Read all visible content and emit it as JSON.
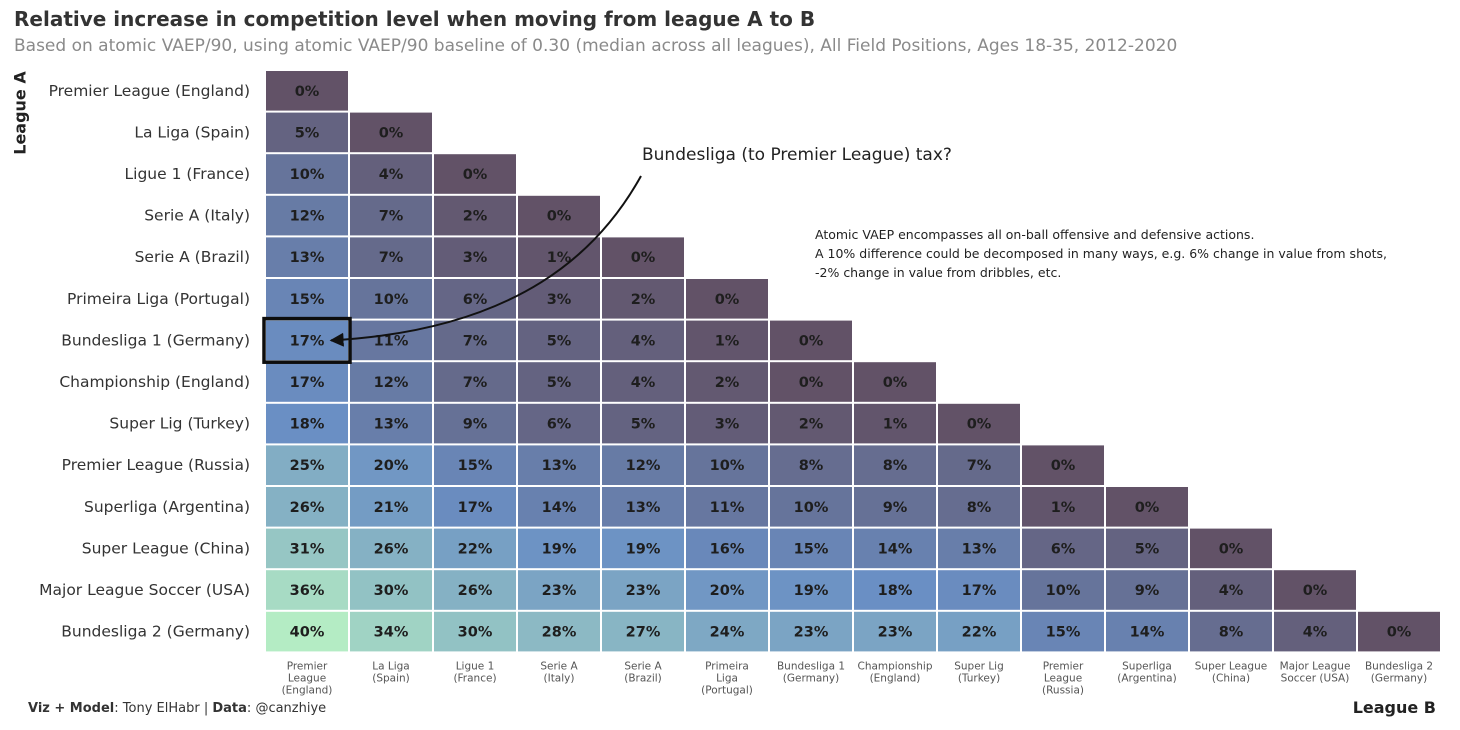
{
  "header": {
    "title": "Relative increase in competition level when moving from league A to B",
    "subtitle": "Based on atomic VAEP/90, using atomic VAEP/90 baseline of 0.30 (median across all leagues), All Field Positions, Ages 18-35, 2012-2020"
  },
  "annotation": {
    "callout": "Bundesliga (to Premier League) tax?",
    "note_lines": [
      "Atomic VAEP encompasses all on-ball offensive and defensive actions.",
      "A 10% difference could be decomposed in many ways, e.g. 6% change in value from shots,",
      "-2% change in value from dribbles, etc."
    ]
  },
  "caption": {
    "viz_label": "Viz + Model",
    "viz_value": "Tony ElHabr",
    "data_label": "Data",
    "data_value": "@canzhiye",
    "separator": "|"
  },
  "chart_data": {
    "type": "heatmap",
    "title": "Relative increase in competition level when moving from league A to B",
    "subtitle": "Based on atomic VAEP/90, using atomic VAEP/90 baseline of 0.30 (median across all leagues), All Field Positions, Ages 18-35, 2012-2020",
    "ylabel": "League A",
    "xlabel": "League B",
    "unit": "%",
    "color_scale": {
      "low": "#625267",
      "mid": "#6a8fc4",
      "high": "#b4ecc4"
    },
    "highlight_cell": {
      "row": "Bundesliga 1 (Germany)",
      "col": "Premier League (England)"
    },
    "rows": [
      "Premier League (England)",
      "La Liga (Spain)",
      "Ligue 1 (France)",
      "Serie A (Italy)",
      "Serie A (Brazil)",
      "Primeira Liga (Portugal)",
      "Bundesliga 1 (Germany)",
      "Championship (England)",
      "Super Lig (Turkey)",
      "Premier League (Russia)",
      "Superliga (Argentina)",
      "Super League (China)",
      "Major League Soccer (USA)",
      "Bundesliga 2 (Germany)"
    ],
    "columns": [
      [
        "Premier",
        "League",
        "(England)"
      ],
      [
        "La Liga",
        "(Spain)"
      ],
      [
        "Ligue 1",
        "(France)"
      ],
      [
        "Serie A",
        "(Italy)"
      ],
      [
        "Serie A",
        "(Brazil)"
      ],
      [
        "Primeira",
        "Liga",
        "(Portugal)"
      ],
      [
        "Bundesliga 1",
        "(Germany)"
      ],
      [
        "Championship",
        "(England)"
      ],
      [
        "Super Lig",
        "(Turkey)"
      ],
      [
        "Premier",
        "League",
        "(Russia)"
      ],
      [
        "Superliga",
        "(Argentina)"
      ],
      [
        "Super League",
        "(China)"
      ],
      [
        "Major League",
        "Soccer (USA)"
      ],
      [
        "Bundesliga 2",
        "(Germany)"
      ]
    ],
    "values": [
      [
        0
      ],
      [
        5,
        0
      ],
      [
        10,
        4,
        0
      ],
      [
        12,
        7,
        2,
        0
      ],
      [
        13,
        7,
        3,
        1,
        0
      ],
      [
        15,
        10,
        6,
        3,
        2,
        0
      ],
      [
        17,
        11,
        7,
        5,
        4,
        1,
        0
      ],
      [
        17,
        12,
        7,
        5,
        4,
        2,
        0,
        0
      ],
      [
        18,
        13,
        9,
        6,
        5,
        3,
        2,
        1,
        0
      ],
      [
        25,
        20,
        15,
        13,
        12,
        10,
        8,
        8,
        7,
        0
      ],
      [
        26,
        21,
        17,
        14,
        13,
        11,
        10,
        9,
        8,
        1,
        0
      ],
      [
        31,
        26,
        22,
        19,
        19,
        16,
        15,
        14,
        13,
        6,
        5,
        0
      ],
      [
        36,
        30,
        26,
        23,
        23,
        20,
        19,
        18,
        17,
        10,
        9,
        4,
        0
      ],
      [
        40,
        34,
        30,
        28,
        27,
        24,
        23,
        23,
        22,
        15,
        14,
        8,
        4,
        0
      ]
    ]
  }
}
